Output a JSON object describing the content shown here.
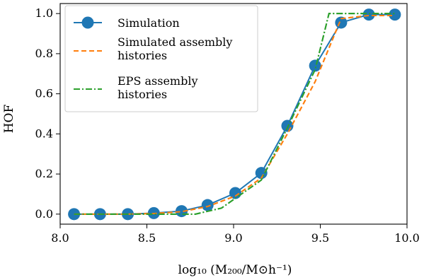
{
  "chart_data": {
    "type": "line",
    "xlabel": "log₁₀ (M₂₀₀/M⊙h⁻¹)",
    "ylabel": "HOF",
    "xlim": [
      8.0,
      10.0
    ],
    "ylim": [
      -0.05,
      1.05
    ],
    "xticks": [
      8.0,
      8.5,
      9.0,
      9.5,
      10.0
    ],
    "xtick_labels": [
      "8.0",
      "8.5",
      "9.0",
      "9.5",
      "10.0"
    ],
    "yticks": [
      0.0,
      0.2,
      0.4,
      0.6,
      0.8,
      1.0
    ],
    "ytick_labels": [
      "0.0",
      "0.2",
      "0.4",
      "0.6",
      "0.8",
      "1.0"
    ],
    "legend_position": "top-left",
    "series": [
      {
        "name": "Simulation",
        "style": "solid line with circle markers",
        "color": "#1f77b4",
        "x": [
          8.08,
          8.23,
          8.39,
          8.54,
          8.7,
          8.85,
          9.01,
          9.16,
          9.31,
          9.47,
          9.62,
          9.78,
          9.93
        ],
        "y": [
          0.0,
          0.0,
          0.0,
          0.005,
          0.015,
          0.045,
          0.105,
          0.205,
          0.44,
          0.74,
          0.955,
          0.995,
          0.995
        ]
      },
      {
        "name": "Simulated assembly\nhistories",
        "style": "dashed",
        "color": "#ff7f0e",
        "x": [
          8.08,
          8.23,
          8.39,
          8.54,
          8.7,
          8.85,
          9.01,
          9.16,
          9.31,
          9.47,
          9.62,
          9.78,
          9.93
        ],
        "y": [
          0.0,
          0.0,
          0.0,
          0.003,
          0.012,
          0.038,
          0.09,
          0.18,
          0.4,
          0.66,
          0.975,
          0.99,
          0.99
        ]
      },
      {
        "name": "EPS assembly\nhistories",
        "style": "dash-dot",
        "color": "#2ca02c",
        "x": [
          8.08,
          8.23,
          8.39,
          8.54,
          8.7,
          8.78,
          8.93,
          9.16,
          9.31,
          9.47,
          9.55,
          9.62,
          9.78,
          9.93
        ],
        "y": [
          0.0,
          0.0,
          0.0,
          0.0,
          0.0,
          0.0,
          0.03,
          0.17,
          0.43,
          0.72,
          1.0,
          1.0,
          1.0,
          1.0
        ]
      }
    ]
  }
}
